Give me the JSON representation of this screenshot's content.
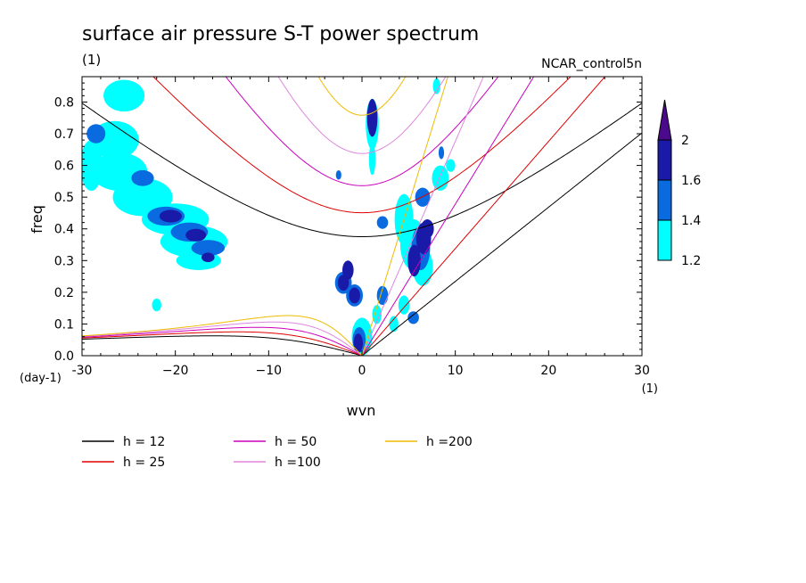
{
  "chart_data": {
    "type": "contour",
    "title": "surface air pressure S-T power spectrum",
    "units_left": "(1)",
    "source_label": "NCAR_control5n",
    "xlabel": "wvn",
    "ylabel": "freq",
    "x_unit": "(1)",
    "y_unit": "(day-1)",
    "xlim": [
      -30,
      30
    ],
    "ylim": [
      0,
      0.88
    ],
    "xticks": [
      -30,
      -20,
      -10,
      0,
      10,
      20,
      30
    ],
    "xtick_labels": [
      "-30",
      "−20",
      "−10",
      "0",
      "10",
      "20",
      "30"
    ],
    "yticks": [
      0,
      0.1,
      0.2,
      0.3,
      0.4,
      0.5,
      0.6,
      0.7,
      0.8
    ],
    "ytick_labels": [
      "0.0",
      "0.1",
      "0.2",
      "0.3",
      "0.4",
      "0.5",
      "0.6",
      "0.7",
      "0.8"
    ],
    "colorbar": {
      "levels": [
        1.2,
        1.4,
        1.6,
        2
      ],
      "labels": [
        "1.2",
        "1.4",
        "1.6",
        "2"
      ],
      "colors": [
        "#00ffff",
        "#0a6ae0",
        "#1a1aa8",
        "#4b0a8c"
      ]
    },
    "dispersion_curves": [
      {
        "h": 12,
        "label": "h = 12",
        "color": "#000000"
      },
      {
        "h": 25,
        "label": "h = 25",
        "color": "#e00000"
      },
      {
        "h": 50,
        "label": "h = 50",
        "color": "#cc00bb"
      },
      {
        "h": 100,
        "label": "h =100",
        "color": "#dd88dd"
      },
      {
        "h": 200,
        "label": "h =200",
        "color": "#eebb00"
      }
    ],
    "spectral_blobs": [
      {
        "x": -29,
        "y": 0.6,
        "rx": 1.2,
        "ry": 0.08,
        "level": 1
      },
      {
        "x": -26.5,
        "y": 0.68,
        "rx": 2.6,
        "ry": 0.06,
        "level": 1
      },
      {
        "x": -26,
        "y": 0.58,
        "rx": 3,
        "ry": 0.06,
        "level": 1
      },
      {
        "x": -23.5,
        "y": 0.5,
        "rx": 3.2,
        "ry": 0.06,
        "level": 1
      },
      {
        "x": -20,
        "y": 0.43,
        "rx": 3.6,
        "ry": 0.05,
        "level": 1
      },
      {
        "x": -18,
        "y": 0.36,
        "rx": 3.6,
        "ry": 0.05,
        "level": 1
      },
      {
        "x": -17.5,
        "y": 0.3,
        "rx": 2.4,
        "ry": 0.03,
        "level": 1
      },
      {
        "x": -25.5,
        "y": 0.82,
        "rx": 2.2,
        "ry": 0.05,
        "level": 1
      },
      {
        "x": -28.5,
        "y": 0.7,
        "rx": 1,
        "ry": 0.03,
        "level": 2
      },
      {
        "x": -23.5,
        "y": 0.56,
        "rx": 1.2,
        "ry": 0.025,
        "level": 2
      },
      {
        "x": -21,
        "y": 0.44,
        "rx": 2,
        "ry": 0.03,
        "level": 2
      },
      {
        "x": -18.5,
        "y": 0.39,
        "rx": 2,
        "ry": 0.03,
        "level": 2
      },
      {
        "x": -16.5,
        "y": 0.34,
        "rx": 1.8,
        "ry": 0.025,
        "level": 2
      },
      {
        "x": -20.5,
        "y": 0.44,
        "rx": 1.2,
        "ry": 0.02,
        "level": 3
      },
      {
        "x": -17.8,
        "y": 0.38,
        "rx": 1.1,
        "ry": 0.02,
        "level": 3
      },
      {
        "x": -16.5,
        "y": 0.31,
        "rx": 0.7,
        "ry": 0.015,
        "level": 3
      },
      {
        "x": 1.1,
        "y": 0.73,
        "rx": 0.7,
        "ry": 0.08,
        "level": 1
      },
      {
        "x": 1.1,
        "y": 0.75,
        "rx": 0.55,
        "ry": 0.06,
        "level": 3
      },
      {
        "x": 1.1,
        "y": 0.62,
        "rx": 0.35,
        "ry": 0.05,
        "level": 1
      },
      {
        "x": -2,
        "y": 0.23,
        "rx": 0.9,
        "ry": 0.035,
        "level": 2
      },
      {
        "x": -2,
        "y": 0.23,
        "rx": 0.6,
        "ry": 0.025,
        "level": 3
      },
      {
        "x": -1.5,
        "y": 0.27,
        "rx": 0.6,
        "ry": 0.03,
        "level": 3
      },
      {
        "x": -0.8,
        "y": 0.19,
        "rx": 0.9,
        "ry": 0.035,
        "level": 2
      },
      {
        "x": -0.8,
        "y": 0.19,
        "rx": 0.6,
        "ry": 0.025,
        "level": 3
      },
      {
        "x": 0,
        "y": 0.06,
        "rx": 1.1,
        "ry": 0.06,
        "level": 1
      },
      {
        "x": -0.3,
        "y": 0.05,
        "rx": 0.7,
        "ry": 0.04,
        "level": 2
      },
      {
        "x": -0.4,
        "y": 0.04,
        "rx": 0.5,
        "ry": 0.03,
        "level": 3
      },
      {
        "x": 2.2,
        "y": 0.19,
        "rx": 0.6,
        "ry": 0.03,
        "level": 2
      },
      {
        "x": 1.6,
        "y": 0.13,
        "rx": 0.5,
        "ry": 0.03,
        "level": 1
      },
      {
        "x": 2.2,
        "y": 0.42,
        "rx": 0.6,
        "ry": 0.02,
        "level": 2
      },
      {
        "x": 4.5,
        "y": 0.43,
        "rx": 1,
        "ry": 0.08,
        "level": 1
      },
      {
        "x": 5.5,
        "y": 0.35,
        "rx": 1.4,
        "ry": 0.08,
        "level": 1
      },
      {
        "x": 6.5,
        "y": 0.28,
        "rx": 1.1,
        "ry": 0.06,
        "level": 1
      },
      {
        "x": 6.3,
        "y": 0.34,
        "rx": 1,
        "ry": 0.07,
        "level": 2
      },
      {
        "x": 6.6,
        "y": 0.37,
        "rx": 0.8,
        "ry": 0.05,
        "level": 3
      },
      {
        "x": 5.6,
        "y": 0.3,
        "rx": 0.7,
        "ry": 0.05,
        "level": 3
      },
      {
        "x": 7,
        "y": 0.4,
        "rx": 0.7,
        "ry": 0.03,
        "level": 3
      },
      {
        "x": 6.5,
        "y": 0.5,
        "rx": 0.8,
        "ry": 0.03,
        "level": 2
      },
      {
        "x": 8.4,
        "y": 0.56,
        "rx": 0.9,
        "ry": 0.04,
        "level": 1
      },
      {
        "x": 9.5,
        "y": 0.6,
        "rx": 0.5,
        "ry": 0.02,
        "level": 1
      },
      {
        "x": 8.5,
        "y": 0.64,
        "rx": 0.3,
        "ry": 0.02,
        "level": 2
      },
      {
        "x": 5.5,
        "y": 0.12,
        "rx": 0.6,
        "ry": 0.02,
        "level": 2
      },
      {
        "x": 4.5,
        "y": 0.16,
        "rx": 0.6,
        "ry": 0.03,
        "level": 1
      },
      {
        "x": 3.4,
        "y": 0.1,
        "rx": 0.5,
        "ry": 0.025,
        "level": 1
      },
      {
        "x": 8,
        "y": 0.85,
        "rx": 0.4,
        "ry": 0.025,
        "level": 1
      },
      {
        "x": -2.5,
        "y": 0.57,
        "rx": 0.3,
        "ry": 0.015,
        "level": 2
      },
      {
        "x": -22,
        "y": 0.16,
        "rx": 0.5,
        "ry": 0.02,
        "level": 1
      },
      {
        "x": -19,
        "y": 0.3,
        "rx": 0.4,
        "ry": 0.02,
        "level": 1
      }
    ]
  }
}
